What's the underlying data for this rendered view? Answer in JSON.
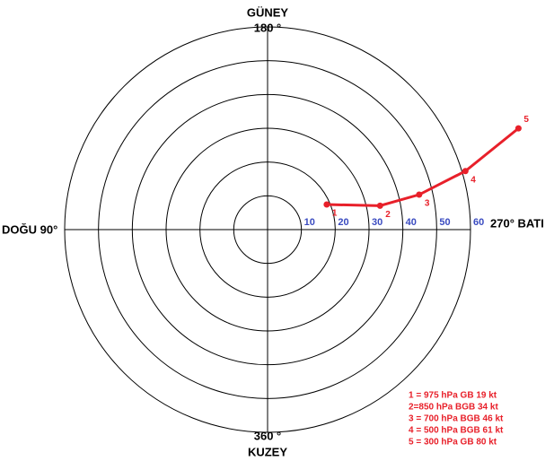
{
  "chart_data": {
    "type": "polar",
    "compass": {
      "top": "GÜNEY",
      "top_degree": "180 °",
      "left": "DOĞU 90°",
      "right": "270°  BATI",
      "bottom_degree": "360 °",
      "bottom": "KUZEY"
    },
    "rlim": [
      0,
      60
    ],
    "rticks": [
      10,
      20,
      30,
      40,
      50,
      60
    ],
    "series": [
      {
        "color": "#e8202a",
        "values": [
          19,
          34,
          46,
          61,
          80
        ],
        "directions": [
          247,
          258,
          257,
          253.5,
          248
        ],
        "point_labels": [
          "1",
          "2",
          "3",
          "4",
          "5"
        ]
      }
    ],
    "notes": [
      "1 = 975 hPa  GB 19 kt",
      "2=850 hPa   BGB 34 kt",
      "3 = 700 hPa BGB 46 kt",
      "4 = 500 hPa BGB 61 kt",
      "5 = 300 hPa GB 80 kt"
    ]
  }
}
